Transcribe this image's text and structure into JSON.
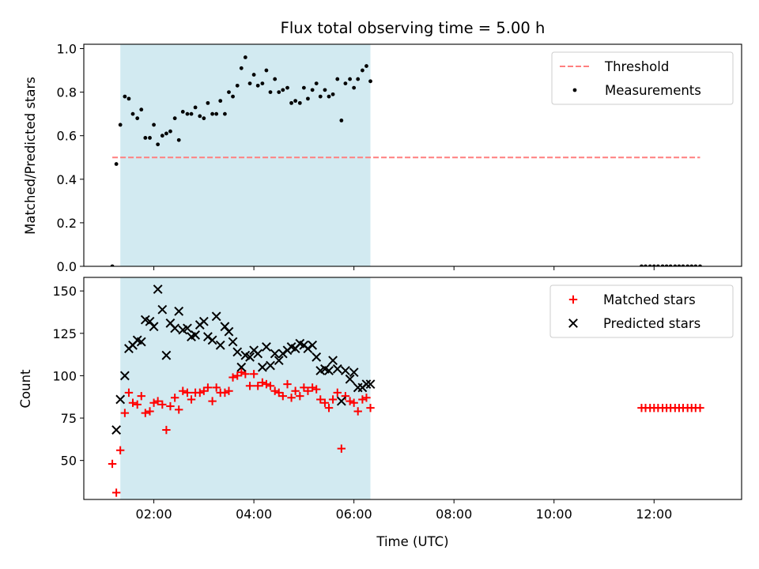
{
  "chart_data": {
    "title": "Flux total observing time = 5.00 h",
    "xlabel": "Time (UTC)",
    "x_unit": "hours UTC",
    "xlim": [
      0.6,
      13.75
    ],
    "xticks": [
      {
        "value": 2,
        "label": "02:00"
      },
      {
        "value": 4,
        "label": "04:00"
      },
      {
        "value": 6,
        "label": "06:00"
      },
      {
        "value": 8,
        "label": "08:00"
      },
      {
        "value": 10,
        "label": "10:00"
      },
      {
        "value": 12,
        "label": "12:00"
      }
    ],
    "shaded_span": {
      "x_start": 1.33,
      "x_end": 6.33,
      "color": "#add8e6"
    },
    "panels": [
      {
        "type": "scatter",
        "ylabel": "Matched/Predicted stars",
        "ylim": [
          0.0,
          1.02
        ],
        "yticks": [
          "0.0",
          "0.2",
          "0.4",
          "0.6",
          "0.8",
          "1.0"
        ],
        "legend_position": "upper right",
        "threshold": {
          "name": "Threshold",
          "value": 0.5,
          "x_start": 1.17,
          "x_end": 12.92,
          "color": "#ff7f7f",
          "style": "dashed"
        },
        "series": [
          {
            "name": "Measurements",
            "color": "#000000",
            "marker": "dot",
            "points": [
              [
                1.17,
                0.0
              ],
              [
                1.25,
                0.47
              ],
              [
                1.33,
                0.65
              ],
              [
                1.42,
                0.78
              ],
              [
                1.5,
                0.77
              ],
              [
                1.58,
                0.7
              ],
              [
                1.67,
                0.68
              ],
              [
                1.75,
                0.72
              ],
              [
                1.83,
                0.59
              ],
              [
                1.92,
                0.59
              ],
              [
                2.0,
                0.65
              ],
              [
                2.08,
                0.56
              ],
              [
                2.17,
                0.6
              ],
              [
                2.25,
                0.61
              ],
              [
                2.33,
                0.62
              ],
              [
                2.42,
                0.68
              ],
              [
                2.5,
                0.58
              ],
              [
                2.58,
                0.71
              ],
              [
                2.67,
                0.7
              ],
              [
                2.75,
                0.7
              ],
              [
                2.83,
                0.73
              ],
              [
                2.92,
                0.69
              ],
              [
                3.0,
                0.68
              ],
              [
                3.08,
                0.75
              ],
              [
                3.17,
                0.7
              ],
              [
                3.25,
                0.7
              ],
              [
                3.33,
                0.76
              ],
              [
                3.42,
                0.7
              ],
              [
                3.5,
                0.8
              ],
              [
                3.58,
                0.78
              ],
              [
                3.67,
                0.83
              ],
              [
                3.75,
                0.91
              ],
              [
                3.83,
                0.96
              ],
              [
                3.92,
                0.84
              ],
              [
                4.0,
                0.88
              ],
              [
                4.08,
                0.83
              ],
              [
                4.17,
                0.84
              ],
              [
                4.25,
                0.9
              ],
              [
                4.33,
                0.8
              ],
              [
                4.42,
                0.86
              ],
              [
                4.5,
                0.8
              ],
              [
                4.58,
                0.81
              ],
              [
                4.67,
                0.82
              ],
              [
                4.75,
                0.75
              ],
              [
                4.83,
                0.76
              ],
              [
                4.92,
                0.75
              ],
              [
                5.0,
                0.82
              ],
              [
                5.08,
                0.77
              ],
              [
                5.17,
                0.81
              ],
              [
                5.25,
                0.84
              ],
              [
                5.33,
                0.78
              ],
              [
                5.42,
                0.81
              ],
              [
                5.5,
                0.78
              ],
              [
                5.58,
                0.79
              ],
              [
                5.67,
                0.86
              ],
              [
                5.75,
                0.67
              ],
              [
                5.83,
                0.84
              ],
              [
                5.92,
                0.86
              ],
              [
                6.0,
                0.82
              ],
              [
                6.08,
                0.86
              ],
              [
                6.17,
                0.9
              ],
              [
                6.25,
                0.92
              ],
              [
                6.33,
                0.85
              ],
              [
                11.75,
                0.0
              ],
              [
                11.83,
                0.0
              ],
              [
                11.92,
                0.0
              ],
              [
                12.0,
                0.0
              ],
              [
                12.08,
                0.0
              ],
              [
                12.17,
                0.0
              ],
              [
                12.25,
                0.0
              ],
              [
                12.33,
                0.0
              ],
              [
                12.42,
                0.0
              ],
              [
                12.5,
                0.0
              ],
              [
                12.58,
                0.0
              ],
              [
                12.67,
                0.0
              ],
              [
                12.75,
                0.0
              ],
              [
                12.83,
                0.0
              ],
              [
                12.92,
                0.0
              ]
            ]
          }
        ]
      },
      {
        "type": "scatter",
        "ylabel": "Count",
        "ylim": [
          27,
          158
        ],
        "yticks": [
          "50",
          "75",
          "100",
          "125",
          "150"
        ],
        "legend_position": "upper right",
        "series": [
          {
            "name": "Matched stars",
            "color": "#ff0000",
            "marker": "plus",
            "points": [
              [
                1.17,
                48
              ],
              [
                1.25,
                31
              ],
              [
                1.33,
                56
              ],
              [
                1.42,
                78
              ],
              [
                1.5,
                90
              ],
              [
                1.58,
                84
              ],
              [
                1.67,
                83
              ],
              [
                1.75,
                88
              ],
              [
                1.83,
                78
              ],
              [
                1.92,
                79
              ],
              [
                2.0,
                84
              ],
              [
                2.08,
                85
              ],
              [
                2.17,
                83
              ],
              [
                2.25,
                68
              ],
              [
                2.33,
                82
              ],
              [
                2.42,
                87
              ],
              [
                2.5,
                80
              ],
              [
                2.58,
                91
              ],
              [
                2.67,
                90
              ],
              [
                2.75,
                86
              ],
              [
                2.83,
                90
              ],
              [
                2.92,
                90
              ],
              [
                3.0,
                91
              ],
              [
                3.08,
                93
              ],
              [
                3.17,
                85
              ],
              [
                3.25,
                93
              ],
              [
                3.33,
                90
              ],
              [
                3.42,
                90
              ],
              [
                3.5,
                91
              ],
              [
                3.58,
                99
              ],
              [
                3.67,
                100
              ],
              [
                3.75,
                102
              ],
              [
                3.83,
                101
              ],
              [
                3.92,
                94
              ],
              [
                4.0,
                101
              ],
              [
                4.08,
                94
              ],
              [
                4.17,
                96
              ],
              [
                4.25,
                95
              ],
              [
                4.33,
                94
              ],
              [
                4.42,
                91
              ],
              [
                4.5,
                90
              ],
              [
                4.58,
                88
              ],
              [
                4.67,
                95
              ],
              [
                4.75,
                87
              ],
              [
                4.83,
                91
              ],
              [
                4.92,
                88
              ],
              [
                5.0,
                93
              ],
              [
                5.08,
                91
              ],
              [
                5.17,
                93
              ],
              [
                5.25,
                92
              ],
              [
                5.33,
                86
              ],
              [
                5.42,
                84
              ],
              [
                5.5,
                81
              ],
              [
                5.58,
                86
              ],
              [
                5.67,
                90
              ],
              [
                5.75,
                57
              ],
              [
                5.83,
                88
              ],
              [
                5.92,
                85
              ],
              [
                6.0,
                84
              ],
              [
                6.08,
                79
              ],
              [
                6.17,
                86
              ],
              [
                6.25,
                87
              ],
              [
                6.33,
                81
              ],
              [
                11.75,
                81
              ],
              [
                11.83,
                81
              ],
              [
                11.92,
                81
              ],
              [
                12.0,
                81
              ],
              [
                12.08,
                81
              ],
              [
                12.17,
                81
              ],
              [
                12.25,
                81
              ],
              [
                12.33,
                81
              ],
              [
                12.42,
                81
              ],
              [
                12.5,
                81
              ],
              [
                12.58,
                81
              ],
              [
                12.67,
                81
              ],
              [
                12.75,
                81
              ],
              [
                12.83,
                81
              ],
              [
                12.92,
                81
              ]
            ]
          },
          {
            "name": "Predicted stars",
            "color": "#000000",
            "marker": "x",
            "points": [
              [
                1.25,
                68
              ],
              [
                1.33,
                86
              ],
              [
                1.42,
                100
              ],
              [
                1.5,
                116
              ],
              [
                1.58,
                118
              ],
              [
                1.67,
                121
              ],
              [
                1.75,
                120
              ],
              [
                1.83,
                133
              ],
              [
                1.92,
                132
              ],
              [
                2.0,
                129
              ],
              [
                2.08,
                151
              ],
              [
                2.17,
                139
              ],
              [
                2.25,
                112
              ],
              [
                2.33,
                131
              ],
              [
                2.42,
                128
              ],
              [
                2.5,
                138
              ],
              [
                2.58,
                127
              ],
              [
                2.67,
                128
              ],
              [
                2.75,
                123
              ],
              [
                2.83,
                124
              ],
              [
                2.92,
                130
              ],
              [
                3.0,
                132
              ],
              [
                3.08,
                123
              ],
              [
                3.17,
                121
              ],
              [
                3.25,
                135
              ],
              [
                3.33,
                118
              ],
              [
                3.42,
                129
              ],
              [
                3.5,
                126
              ],
              [
                3.58,
                120
              ],
              [
                3.67,
                114
              ],
              [
                3.75,
                105
              ],
              [
                3.83,
                112
              ],
              [
                3.92,
                111
              ],
              [
                4.0,
                115
              ],
              [
                4.08,
                113
              ],
              [
                4.17,
                105
              ],
              [
                4.25,
                117
              ],
              [
                4.33,
                106
              ],
              [
                4.42,
                113
              ],
              [
                4.5,
                109
              ],
              [
                4.58,
                113
              ],
              [
                4.67,
                115
              ],
              [
                4.75,
                117
              ],
              [
                4.83,
                116
              ],
              [
                4.92,
                119
              ],
              [
                5.0,
                118
              ],
              [
                5.08,
                116
              ],
              [
                5.17,
                118
              ],
              [
                5.25,
                111
              ],
              [
                5.33,
                103
              ],
              [
                5.42,
                104
              ],
              [
                5.5,
                103
              ],
              [
                5.58,
                109
              ],
              [
                5.67,
                104
              ],
              [
                5.75,
                85
              ],
              [
                5.83,
                103
              ],
              [
                5.92,
                98
              ],
              [
                6.0,
                102
              ],
              [
                6.08,
                93
              ],
              [
                6.17,
                93
              ],
              [
                6.25,
                95
              ],
              [
                6.33,
                95
              ]
            ]
          }
        ]
      }
    ]
  }
}
